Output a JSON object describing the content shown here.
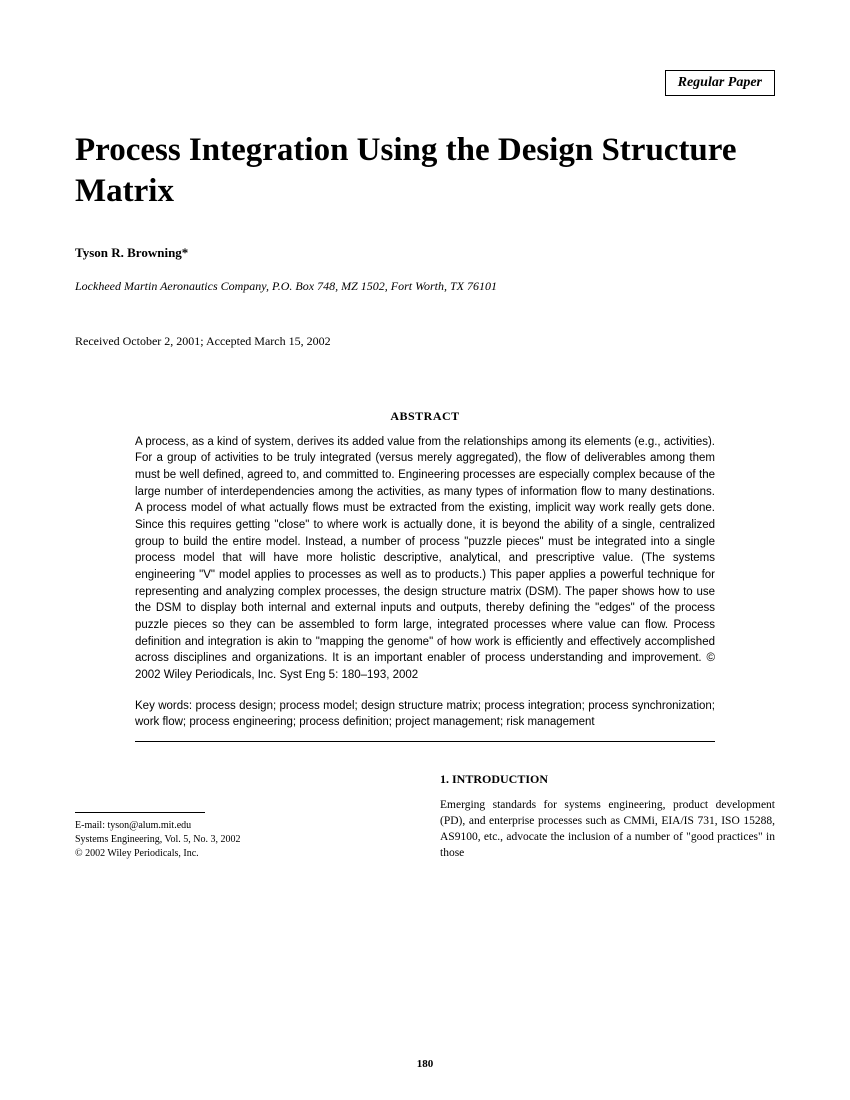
{
  "paper_type": "Regular Paper",
  "title": "Process Integration Using the Design Structure Matrix",
  "author": "Tyson R. Browning*",
  "affiliation": "Lockheed Martin Aeronautics Company, P.O. Box 748, MZ 1502, Fort Worth, TX 76101",
  "dates": "Received October 2, 2001; Accepted March 15, 2002",
  "abstract_heading": "ABSTRACT",
  "abstract_body": "A process, as a kind of system, derives its added value from the relationships among its elements (e.g., activities). For a group of activities to be truly integrated (versus merely aggregated), the flow of deliverables among them must be well defined, agreed to, and committed to. Engineering processes are especially complex because of the large number of interdependencies among the activities, as many types of information flow to many destinations. A process model of what actually flows must be extracted from the existing, implicit way work really gets done. Since this requires getting \"close\" to where work is actually done, it is beyond the ability of a single, centralized group to build the entire model. Instead, a number of process \"puzzle pieces\" must be integrated into a single process model that will have more holistic descriptive, analytical, and prescriptive value. (The systems engineering \"V\" model applies to processes as well as to products.) This paper applies a powerful technique for representing and analyzing complex processes, the design structure matrix (DSM). The paper shows how to use the DSM to display both internal and external inputs and outputs, thereby defining the \"edges\" of the process puzzle pieces so they can be assembled to form large, integrated processes where value can flow. Process definition and integration is akin to \"mapping the genome\" of how work is efficiently and effectively accomplished across disciplines and organizations. It is an important enabler of process understanding and improvement. © 2002 Wiley Periodicals, Inc. Syst Eng 5: 180–193, 2002",
  "keywords": "Key words: process design; process model; design structure matrix; process integration; process synchronization; work flow; process engineering; process definition; project management; risk management",
  "section_heading": "1. INTRODUCTION",
  "intro_text": "Emerging standards for systems engineering, product development (PD), and enterprise processes such as CMMi, EIA/IS 731, ISO 15288, AS9100, etc., advocate the inclusion of a number of \"good practices\" in those",
  "footnote_email": "E-mail: tyson@alum.mit.edu",
  "footnote_journal": "Systems Engineering, Vol. 5, No. 3, 2002",
  "footnote_copyright": "© 2002 Wiley Periodicals, Inc.",
  "page_number": "180"
}
